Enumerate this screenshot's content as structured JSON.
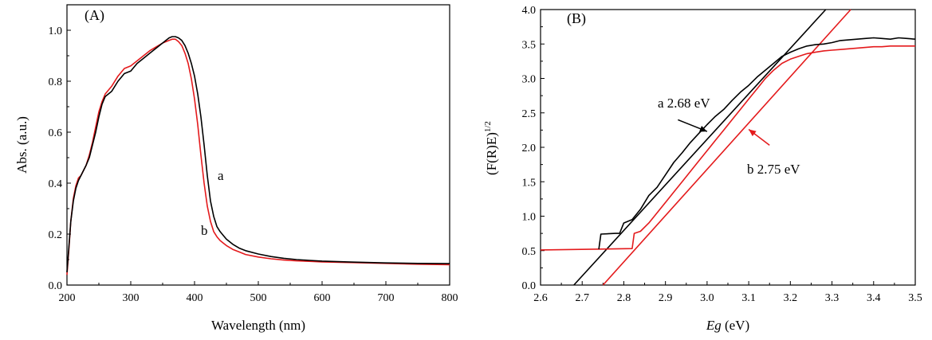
{
  "colors": {
    "series_a": "#000000",
    "series_b": "#e41a1c",
    "axis": "#000000"
  },
  "chart_data": [
    {
      "type": "line",
      "panel_label": "(A)",
      "xlabel": "Wavelength (nm)",
      "ylabel": "Abs. (a.u.)",
      "xlim": [
        200,
        800
      ],
      "ylim": [
        0.0,
        1.1
      ],
      "xticks": [
        200,
        300,
        400,
        500,
        600,
        700,
        800
      ],
      "xtick_labels": [
        "200",
        "300",
        "400",
        "500",
        "600",
        "700",
        "800"
      ],
      "yticks": [
        0.0,
        0.2,
        0.4,
        0.6,
        0.8,
        1.0
      ],
      "ytick_labels": [
        "0.0",
        "0.2",
        "0.4",
        "0.6",
        "0.8",
        "1.0"
      ],
      "series": [
        {
          "name": "a",
          "label": "a",
          "color_key": "series_a",
          "x": [
            200,
            203,
            206,
            210,
            214,
            218,
            222,
            226,
            230,
            235,
            240,
            245,
            250,
            255,
            260,
            270,
            280,
            290,
            300,
            310,
            320,
            330,
            340,
            350,
            360,
            365,
            370,
            375,
            380,
            385,
            390,
            395,
            400,
            405,
            410,
            415,
            420,
            425,
            430,
            435,
            440,
            445,
            450,
            460,
            470,
            480,
            500,
            520,
            540,
            560,
            580,
            600,
            650,
            700,
            750,
            800
          ],
          "y": [
            0.05,
            0.15,
            0.25,
            0.33,
            0.38,
            0.41,
            0.43,
            0.45,
            0.47,
            0.5,
            0.55,
            0.6,
            0.66,
            0.71,
            0.74,
            0.76,
            0.8,
            0.83,
            0.84,
            0.87,
            0.89,
            0.91,
            0.93,
            0.95,
            0.97,
            0.975,
            0.975,
            0.97,
            0.96,
            0.94,
            0.91,
            0.87,
            0.82,
            0.75,
            0.66,
            0.55,
            0.43,
            0.33,
            0.27,
            0.23,
            0.21,
            0.195,
            0.18,
            0.16,
            0.145,
            0.135,
            0.122,
            0.112,
            0.105,
            0.1,
            0.097,
            0.094,
            0.09,
            0.087,
            0.085,
            0.084
          ]
        },
        {
          "name": "b",
          "label": "b",
          "color_key": "series_b",
          "x": [
            200,
            203,
            206,
            210,
            214,
            218,
            222,
            226,
            230,
            235,
            240,
            245,
            250,
            255,
            260,
            270,
            280,
            290,
            300,
            310,
            320,
            330,
            340,
            350,
            360,
            365,
            370,
            375,
            380,
            385,
            390,
            395,
            400,
            405,
            410,
            415,
            420,
            425,
            430,
            435,
            440,
            445,
            450,
            460,
            470,
            480,
            500,
            520,
            540,
            560,
            580,
            600,
            650,
            700,
            750,
            800
          ],
          "y": [
            0.04,
            0.14,
            0.25,
            0.34,
            0.39,
            0.42,
            0.43,
            0.45,
            0.47,
            0.51,
            0.56,
            0.62,
            0.68,
            0.72,
            0.75,
            0.78,
            0.82,
            0.85,
            0.86,
            0.88,
            0.9,
            0.92,
            0.935,
            0.95,
            0.96,
            0.965,
            0.965,
            0.955,
            0.94,
            0.91,
            0.87,
            0.81,
            0.73,
            0.63,
            0.51,
            0.4,
            0.31,
            0.25,
            0.21,
            0.19,
            0.175,
            0.165,
            0.155,
            0.14,
            0.13,
            0.12,
            0.11,
            0.103,
            0.098,
            0.095,
            0.093,
            0.091,
            0.088,
            0.085,
            0.082,
            0.08
          ]
        }
      ]
    },
    {
      "type": "line",
      "panel_label": "(B)",
      "xlabel_italic": "Eg",
      "xlabel_rest": " (eV)",
      "ylabel_main": "(F(R)E)",
      "ylabel_superscript": "1/2",
      "xlim": [
        2.6,
        3.5
      ],
      "ylim": [
        0.0,
        4.0
      ],
      "xticks": [
        2.6,
        2.7,
        2.8,
        2.9,
        3.0,
        3.1,
        3.2,
        3.3,
        3.4,
        3.5
      ],
      "xtick_labels": [
        "2.6",
        "2.7",
        "2.8",
        "2.9",
        "3.0",
        "3.1",
        "3.2",
        "3.3",
        "3.4",
        "3.5"
      ],
      "yticks": [
        0.0,
        0.5,
        1.0,
        1.5,
        2.0,
        2.5,
        3.0,
        3.5,
        4.0
      ],
      "ytick_labels": [
        "0.0",
        "0.5",
        "1.0",
        "1.5",
        "2.0",
        "2.5",
        "3.0",
        "3.5",
        "4.0"
      ],
      "series": [
        {
          "name": "a",
          "color_key": "series_a",
          "x": [
            2.74,
            2.745,
            2.78,
            2.79,
            2.8,
            2.82,
            2.84,
            2.86,
            2.88,
            2.9,
            2.92,
            2.94,
            2.96,
            2.98,
            3.0,
            3.02,
            3.04,
            3.06,
            3.08,
            3.1,
            3.12,
            3.14,
            3.16,
            3.18,
            3.2,
            3.22,
            3.24,
            3.26,
            3.28,
            3.3,
            3.32,
            3.34,
            3.36,
            3.38,
            3.4,
            3.42,
            3.44,
            3.46,
            3.48,
            3.5
          ],
          "y": [
            0.52,
            0.74,
            0.75,
            0.75,
            0.9,
            0.95,
            1.1,
            1.3,
            1.42,
            1.6,
            1.78,
            1.92,
            2.07,
            2.2,
            2.33,
            2.45,
            2.55,
            2.68,
            2.8,
            2.9,
            3.02,
            3.12,
            3.22,
            3.32,
            3.38,
            3.43,
            3.47,
            3.49,
            3.5,
            3.52,
            3.55,
            3.56,
            3.57,
            3.58,
            3.59,
            3.58,
            3.57,
            3.59,
            3.58,
            3.57
          ]
        },
        {
          "name": "b",
          "color_key": "series_b",
          "x": [
            2.6,
            2.82,
            2.825,
            2.84,
            2.86,
            2.88,
            2.9,
            2.92,
            2.94,
            2.96,
            2.98,
            3.0,
            3.02,
            3.04,
            3.06,
            3.08,
            3.1,
            3.12,
            3.14,
            3.16,
            3.18,
            3.2,
            3.22,
            3.24,
            3.26,
            3.28,
            3.3,
            3.32,
            3.34,
            3.36,
            3.38,
            3.4,
            3.42,
            3.44,
            3.46,
            3.48,
            3.5
          ],
          "y": [
            0.51,
            0.53,
            0.75,
            0.78,
            0.9,
            1.05,
            1.2,
            1.35,
            1.5,
            1.65,
            1.8,
            1.95,
            2.1,
            2.25,
            2.4,
            2.55,
            2.7,
            2.85,
            3.0,
            3.12,
            3.22,
            3.28,
            3.32,
            3.36,
            3.38,
            3.4,
            3.41,
            3.42,
            3.43,
            3.44,
            3.45,
            3.46,
            3.46,
            3.47,
            3.47,
            3.47,
            3.47
          ]
        }
      ],
      "fit_lines": [
        {
          "name": "a",
          "color_key": "series_a",
          "x": [
            2.68,
            3.285
          ],
          "y": [
            0.0,
            4.0
          ]
        },
        {
          "name": "b",
          "color_key": "series_b",
          "x": [
            2.75,
            3.345
          ],
          "y": [
            0.0,
            4.0
          ]
        }
      ],
      "annotations": [
        {
          "name": "a",
          "label": "a 2.68 eV",
          "color_key": "series_a",
          "arrow_from": [
            2.93,
            2.4
          ],
          "arrow_to": [
            3.0,
            2.23
          ]
        },
        {
          "name": "b",
          "label": "b 2.75 eV",
          "color_key": "series_b",
          "arrow_from": [
            3.15,
            2.03
          ],
          "arrow_to": [
            3.1,
            2.26
          ]
        }
      ]
    }
  ]
}
